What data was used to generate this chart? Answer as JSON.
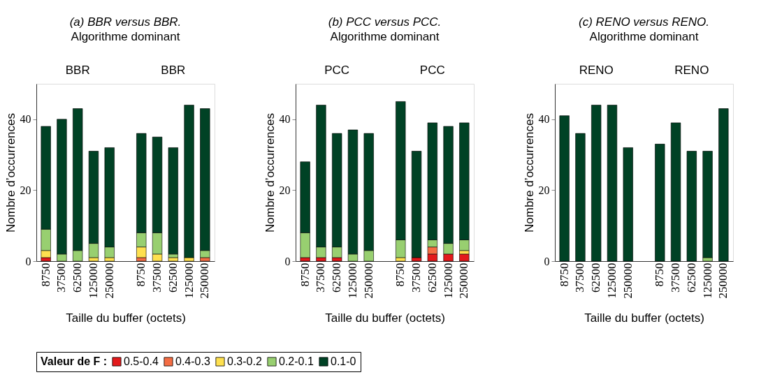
{
  "chart_data": [
    {
      "type": "bar",
      "stacked": true,
      "title": "(a) BBR versus BBR.",
      "subtitle": "Algorithme dominant",
      "xlabel": "Taille du buffer (octets)",
      "ylabel": "Nombre d’occurrences",
      "annotations": [
        "BBR",
        "BBR"
      ],
      "categories": [
        "8750",
        "37500",
        "62500",
        "125000",
        "250000",
        null,
        "8750",
        "37500",
        "62500",
        "125000",
        "250000"
      ],
      "ylim": [
        0,
        50
      ],
      "yticks": [
        0,
        20,
        40
      ],
      "legend": "bottom",
      "legend_title": "Valeur de F :",
      "series": [
        {
          "name": "0.5-0.4",
          "color": "#e31a1c",
          "values": [
            1,
            0,
            0,
            0,
            0,
            null,
            0,
            0,
            0,
            0,
            0
          ]
        },
        {
          "name": "0.4-0.3",
          "color": "#f46d43",
          "values": [
            0,
            0,
            0,
            0,
            0,
            null,
            1,
            0,
            0,
            0,
            1
          ]
        },
        {
          "name": "0.3-0.2",
          "color": "#fee04f",
          "values": [
            2,
            0,
            0,
            1,
            1,
            null,
            3,
            2,
            1,
            1,
            0
          ]
        },
        {
          "name": "0.2-0.1",
          "color": "#98cf70",
          "values": [
            6,
            2,
            3,
            4,
            3,
            null,
            4,
            6,
            1,
            0,
            2
          ]
        },
        {
          "name": "0.1-0",
          "color": "#004225",
          "values": [
            29,
            38,
            40,
            26,
            28,
            null,
            28,
            27,
            30,
            43,
            40
          ]
        }
      ]
    },
    {
      "type": "bar",
      "stacked": true,
      "title": "(b) PCC versus PCC.",
      "subtitle": "Algorithme dominant",
      "xlabel": "Taille du buffer (octets)",
      "ylabel": "Nombre d’occurrences",
      "annotations": [
        "PCC",
        "PCC"
      ],
      "categories": [
        "8750",
        "37500",
        "62500",
        "125000",
        "250000",
        null,
        "8750",
        "37500",
        "62500",
        "125000",
        "250000"
      ],
      "ylim": [
        0,
        50
      ],
      "yticks": [
        0,
        20,
        40
      ],
      "series": [
        {
          "name": "0.5-0.4",
          "color": "#e31a1c",
          "values": [
            1,
            1,
            1,
            0,
            0,
            null,
            0,
            1,
            2,
            2,
            2
          ]
        },
        {
          "name": "0.4-0.3",
          "color": "#f46d43",
          "values": [
            0,
            0,
            0,
            0,
            0,
            null,
            0,
            0,
            2,
            0,
            0
          ]
        },
        {
          "name": "0.3-0.2",
          "color": "#fee04f",
          "values": [
            0,
            0,
            0,
            0,
            0,
            null,
            1,
            0,
            0,
            0,
            1
          ]
        },
        {
          "name": "0.2-0.1",
          "color": "#98cf70",
          "values": [
            7,
            3,
            3,
            2,
            3,
            null,
            5,
            0,
            2,
            3,
            3
          ]
        },
        {
          "name": "0.1-0",
          "color": "#004225",
          "values": [
            20,
            40,
            32,
            35,
            33,
            null,
            39,
            30,
            33,
            33,
            33
          ]
        }
      ]
    },
    {
      "type": "bar",
      "stacked": true,
      "title": "(c) RENO versus RENO.",
      "subtitle": "Algorithme dominant",
      "xlabel": "Taille du buffer (octets)",
      "ylabel": "Nombre d’occurrences",
      "annotations": [
        "RENO",
        "RENO"
      ],
      "categories": [
        "8750",
        "37500",
        "62500",
        "125000",
        "250000",
        null,
        "8750",
        "37500",
        "62500",
        "125000",
        "250000"
      ],
      "ylim": [
        0,
        50
      ],
      "yticks": [
        0,
        20,
        40
      ],
      "series": [
        {
          "name": "0.5-0.4",
          "color": "#e31a1c",
          "values": [
            0,
            0,
            0,
            0,
            0,
            null,
            0,
            0,
            0,
            0,
            0
          ]
        },
        {
          "name": "0.4-0.3",
          "color": "#f46d43",
          "values": [
            0,
            0,
            0,
            0,
            0,
            null,
            0,
            0,
            0,
            0,
            0
          ]
        },
        {
          "name": "0.3-0.2",
          "color": "#fee04f",
          "values": [
            0,
            0,
            0,
            0,
            0,
            null,
            0,
            0,
            0,
            0,
            0
          ]
        },
        {
          "name": "0.2-0.1",
          "color": "#98cf70",
          "values": [
            0,
            0,
            0,
            0,
            0,
            null,
            0,
            0,
            0,
            1,
            0
          ]
        },
        {
          "name": "0.1-0",
          "color": "#004225",
          "values": [
            41,
            36,
            44,
            44,
            32,
            null,
            33,
            39,
            31,
            30,
            43
          ]
        }
      ]
    }
  ]
}
